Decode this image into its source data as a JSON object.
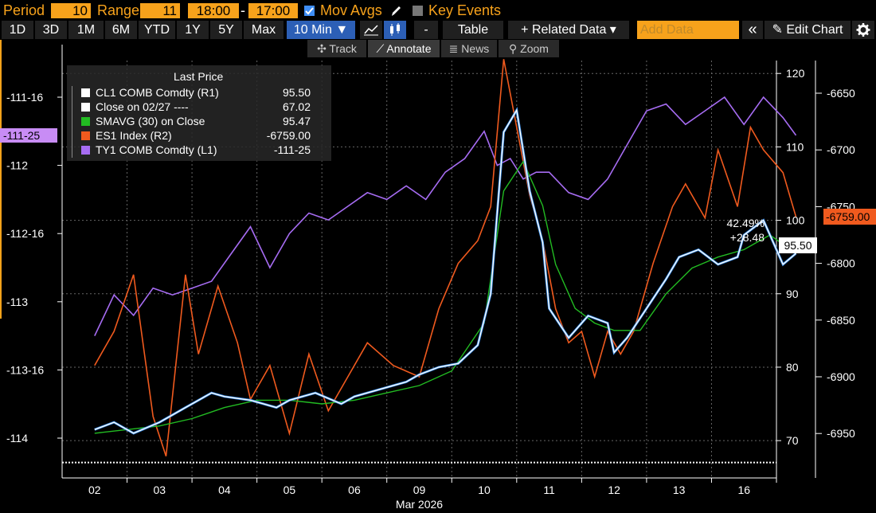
{
  "toolbar1": {
    "period_label": "Period",
    "period_value": "10",
    "range_label": "Range",
    "range_value": "11",
    "time_start": "18:00",
    "time_sep": "-",
    "time_end": "17:00",
    "mov_avgs_label": "Mov Avgs",
    "mov_avgs_checked": true,
    "key_events_label": "Key Events",
    "key_events_checked": false
  },
  "toolbar2": {
    "ranges": [
      "1D",
      "3D",
      "1M",
      "6M",
      "YTD",
      "1Y",
      "5Y",
      "Max"
    ],
    "interval": "10 Min ▼",
    "dash": "-",
    "table": "Table",
    "related": "+ Related Data ▾",
    "add_data_placeholder": "Add Data",
    "collapse": "«",
    "edit_chart": "✎ Edit Chart",
    "settings_icon": "gear-icon"
  },
  "toolbar3": {
    "track": "✣ Track",
    "annotate": "⟋ Annotate",
    "news": "≣ News",
    "zoom": "⚲ Zoom"
  },
  "legend": {
    "header": "Last Price",
    "rows": [
      {
        "name": "CL1 COMB Comdty  (R1)",
        "value": "95.50",
        "color": "#ffffff"
      },
      {
        "name": "Close on 02/27 ----",
        "value": "67.02",
        "color": "#ffffff"
      },
      {
        "name": "SMAVG (30)  on Close",
        "value": "95.47",
        "color": "#22bb22"
      },
      {
        "name": "ES1 Index  (R2)",
        "value": "-6759.00",
        "color": "#f05a1e"
      },
      {
        "name": "TY1 COMB Comdty  (L1)",
        "value": "-111-25",
        "color": "#a66cf2"
      }
    ]
  },
  "annotations": {
    "left_tag": "-111-25",
    "pct_change": "42.49%",
    "abs_change": "+28.48",
    "cl_tag": "95.50",
    "es_tag": "-6759.00"
  },
  "chart_data": {
    "type": "line",
    "x_labels": [
      "02",
      "03",
      "04",
      "05",
      "06",
      "09",
      "10",
      "11",
      "12",
      "13",
      "16"
    ],
    "x_axis_title": "Mar 2026",
    "left_axis": {
      "ticks": [
        "-111-16",
        "-112",
        "-112-16",
        "-113",
        "-113-16",
        "-114"
      ]
    },
    "right1_axis": {
      "ticks": [
        "120",
        "110",
        "100",
        "90",
        "80",
        "70"
      ],
      "range": [
        66,
        120
      ]
    },
    "right2_axis": {
      "ticks": [
        "-6650",
        "-6700",
        "-6750",
        "-6800",
        "-6850",
        "-6900",
        "-6950"
      ]
    },
    "reference_line": {
      "name": "Close on 02/27",
      "value": 67.02
    },
    "series": [
      {
        "name": "CL1 COMB Comdty (R1)",
        "color": "#ffffff",
        "x": [
          0,
          0.3,
          0.6,
          1,
          1.4,
          1.8,
          2,
          2.4,
          2.8,
          3,
          3.4,
          3.8,
          4,
          4.4,
          4.8,
          5,
          5.3,
          5.6,
          5.9,
          6.1,
          6.3,
          6.5,
          6.7,
          6.9,
          7,
          7.3,
          7.6,
          7.9,
          8,
          8.2,
          8.5,
          8.8,
          9,
          9.3,
          9.6,
          9.9,
          10,
          10.3,
          10.6,
          10.8
        ],
        "values": [
          71.5,
          72.5,
          71,
          72.5,
          74.5,
          76.5,
          76,
          75.5,
          74.5,
          75.5,
          76.5,
          75,
          76,
          77,
          78,
          79,
          80,
          80.5,
          83,
          90,
          112,
          115,
          104,
          97,
          88,
          84,
          87,
          86,
          82,
          84,
          88,
          92,
          95,
          96,
          94,
          95,
          98,
          100,
          94,
          95.5
        ]
      },
      {
        "name": "SMAVG (30) on Close",
        "color": "#22bb22",
        "x": [
          0,
          0.5,
          1,
          1.5,
          2,
          2.5,
          3,
          3.5,
          4,
          4.5,
          5,
          5.5,
          6,
          6.3,
          6.6,
          6.9,
          7.1,
          7.4,
          7.7,
          8,
          8.4,
          8.8,
          9.2,
          9.6,
          10,
          10.4,
          10.8
        ],
        "values": [
          71,
          71.5,
          72,
          73,
          74.5,
          75.5,
          75.5,
          75,
          75.5,
          76.5,
          77.5,
          79.5,
          86,
          104,
          108,
          102,
          94,
          88,
          86,
          85,
          85,
          90,
          93.5,
          95,
          96,
          98,
          95.5
        ]
      },
      {
        "name": "ES1 Index (R2)",
        "color": "#f05a1e",
        "x": [
          0,
          0.3,
          0.6,
          0.9,
          1.1,
          1.4,
          1.6,
          1.9,
          2.2,
          2.4,
          2.7,
          3,
          3.3,
          3.6,
          3.9,
          4.2,
          4.6,
          5,
          5.3,
          5.6,
          5.9,
          6.1,
          6.3,
          6.5,
          6.7,
          6.9,
          7.1,
          7.3,
          7.5,
          7.7,
          7.9,
          8.1,
          8.3,
          8.6,
          8.9,
          9.1,
          9.4,
          9.6,
          9.9,
          10.1,
          10.3,
          10.6,
          10.8
        ],
        "values": [
          -6890,
          -6860,
          -6810,
          -6935,
          -6970,
          -6810,
          -6880,
          -6820,
          -6870,
          -6920,
          -6890,
          -6950,
          -6880,
          -6930,
          -6900,
          -6870,
          -6890,
          -6900,
          -6840,
          -6800,
          -6780,
          -6750,
          -6620,
          -6680,
          -6740,
          -6780,
          -6840,
          -6870,
          -6860,
          -6900,
          -6860,
          -6880,
          -6860,
          -6800,
          -6750,
          -6730,
          -6760,
          -6700,
          -6750,
          -6680,
          -6700,
          -6720,
          -6759
        ]
      },
      {
        "name": "TY1 COMB Comdty (L1)",
        "color": "#a66cf2",
        "x": [
          0,
          0.3,
          0.6,
          0.9,
          1.2,
          1.5,
          1.8,
          2.1,
          2.4,
          2.7,
          3,
          3.3,
          3.6,
          3.9,
          4.2,
          4.5,
          4.8,
          5.1,
          5.4,
          5.7,
          6,
          6.2,
          6.4,
          6.6,
          6.8,
          7,
          7.3,
          7.6,
          7.9,
          8.2,
          8.5,
          8.8,
          9.1,
          9.4,
          9.7,
          10,
          10.3,
          10.6,
          10.8
        ],
        "values": [
          -113.25,
          -112.95,
          -113.1,
          -112.9,
          -112.95,
          -112.9,
          -112.85,
          -112.65,
          -112.45,
          -112.75,
          -112.5,
          -112.35,
          -112.4,
          -112.3,
          -112.2,
          -112.25,
          -112.15,
          -112.25,
          -112.05,
          -111.95,
          -111.75,
          -112.0,
          -111.95,
          -112.1,
          -112.05,
          -112.05,
          -112.2,
          -112.25,
          -112.1,
          -111.85,
          -111.6,
          -111.55,
          -111.7,
          -111.6,
          -111.5,
          -111.7,
          -111.5,
          -111.65,
          -111.78
        ]
      }
    ]
  }
}
